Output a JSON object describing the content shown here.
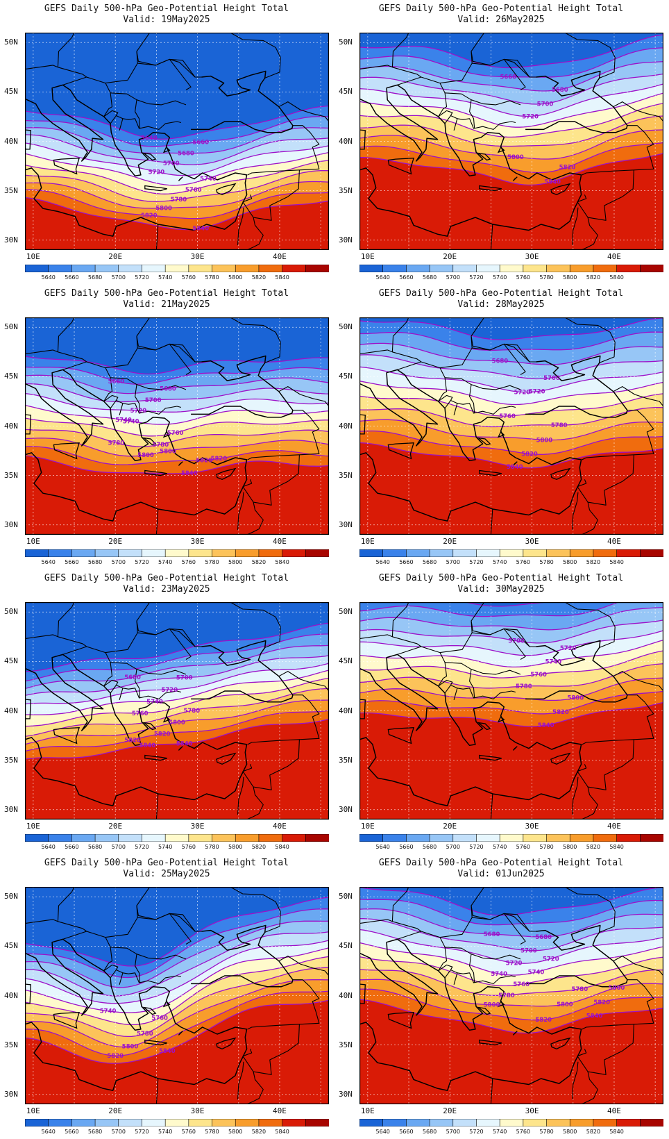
{
  "colors": {
    "fill": [
      "#1a64d6",
      "#3a82ea",
      "#6aa8f2",
      "#97c6f6",
      "#c3e0fa",
      "#e6f6fd",
      "#fffacc",
      "#fde58c",
      "#fcc35a",
      "#f89d2c",
      "#f06c0e",
      "#d91b06",
      "#a80500"
    ],
    "contour": "#9d11c9",
    "coast": "#000000"
  },
  "colorbar": {
    "labels": [
      "5640",
      "5660",
      "5680",
      "5700",
      "5720",
      "5740",
      "5760",
      "5780",
      "5800",
      "5820",
      "5840"
    ]
  },
  "axes": {
    "y_labels": [
      "50N",
      "45N",
      "40N",
      "35N",
      "30N"
    ],
    "x_labels": [
      "10E",
      "20E",
      "30E",
      "40E"
    ]
  },
  "panels": [
    {
      "title": "GEFS Daily 500-hPa Geo-Potential Height Total",
      "valid": "Valid: 19May2025",
      "contour_labels": [
        "5640",
        "5660",
        "5680",
        "5700",
        "5720",
        "5740",
        "5760",
        "5780",
        "5800",
        "5820",
        "5840"
      ]
    },
    {
      "title": "GEFS Daily 500-hPa Geo-Potential Height Total",
      "valid": "Valid: 26May2025",
      "contour_labels": [
        "5660",
        "5680",
        "5700",
        "5720",
        "5800",
        "5820",
        "5840"
      ]
    },
    {
      "title": "GEFS Daily 500-hPa Geo-Potential Height Total",
      "valid": "Valid: 21May2025",
      "contour_labels": [
        "5660",
        "5680",
        "5700",
        "5720",
        "5740",
        "5760",
        "5780",
        "5800",
        "5740",
        "5780",
        "5800",
        "5820",
        "5820",
        "5840"
      ]
    },
    {
      "title": "GEFS Daily 500-hPa Geo-Potential Height Total",
      "valid": "Valid: 28May2025",
      "contour_labels": [
        "5680",
        "5700",
        "5720",
        "5720",
        "5760",
        "5780",
        "5800",
        "5820",
        "5840"
      ]
    },
    {
      "title": "GEFS Daily 500-hPa Geo-Potential Height Total",
      "valid": "Valid: 23May2025",
      "contour_labels": [
        "5680",
        "5700",
        "5720",
        "5740",
        "5760",
        "5780",
        "5800",
        "5820",
        "5840",
        "5820",
        "5840"
      ]
    },
    {
      "title": "GEFS Daily 500-hPa Geo-Potential Height Total",
      "valid": "Valid: 30May2025",
      "contour_labels": [
        "5700",
        "5720",
        "5740",
        "5760",
        "5780",
        "5800",
        "5820",
        "5840"
      ]
    },
    {
      "title": "GEFS Daily 500-hPa Geo-Potential Height Total",
      "valid": "Valid: 25May2025",
      "contour_labels": [
        "5740",
        "5760",
        "5780",
        "5800",
        "5820",
        "5840"
      ]
    },
    {
      "title": "GEFS Daily 500-hPa Geo-Potential Height Total",
      "valid": "Valid: 01Jun2025",
      "contour_labels": [
        "5680",
        "5680",
        "5700",
        "5720",
        "5740",
        "5720",
        "5740",
        "5760",
        "5780",
        "5800",
        "5820",
        "5840",
        "5780",
        "5800",
        "5800",
        "5820"
      ]
    }
  ]
}
